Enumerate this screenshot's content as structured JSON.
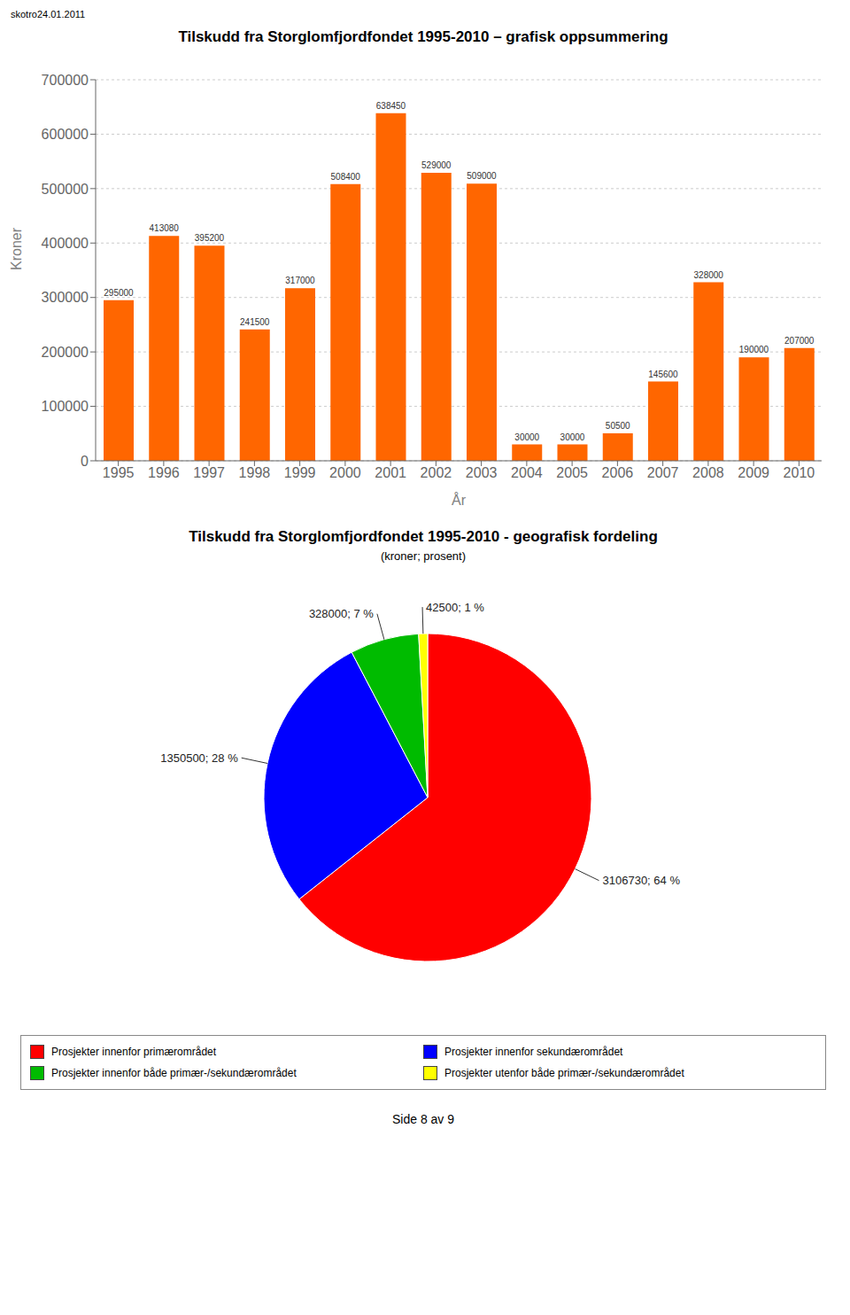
{
  "header": "skotro24.01.2011",
  "footer": "Side 8 av 9",
  "chart_data": [
    {
      "type": "bar",
      "title": "Tilskudd fra Storglomfjordfondet 1995-2010 – grafisk oppsummering",
      "xlabel": "År",
      "ylabel": "Kroner",
      "categories": [
        "1995",
        "1996",
        "1997",
        "1998",
        "1999",
        "2000",
        "2001",
        "2002",
        "2003",
        "2004",
        "2005",
        "2006",
        "2007",
        "2008",
        "2009",
        "2010"
      ],
      "values": [
        295000,
        413080,
        395200,
        241500,
        317000,
        508400,
        638450,
        529000,
        509000,
        30000,
        30000,
        50500,
        145600,
        328000,
        190000,
        207000
      ],
      "color": "#FF6600",
      "ylim": [
        0,
        700000
      ],
      "yticks": [
        0,
        100000,
        200000,
        300000,
        400000,
        500000,
        600000,
        700000
      ],
      "grid": true,
      "data_labels": true
    },
    {
      "type": "pie",
      "title": "Tilskudd fra Storglomfjordfondet 1995-2010 - geografisk fordeling",
      "subtitle": "(kroner; prosent)",
      "categories": [
        "Prosjekter innenfor primærområdet",
        "Prosjekter innenfor sekundærområdet",
        "Prosjekter innenfor både primær-/sekundærområdet",
        "Prosjekter utenfor både primær-/sekundærområdet"
      ],
      "values": [
        3106730,
        1350500,
        328000,
        42500
      ],
      "value_labels": [
        "3106730; 64 %",
        "1350500; 28 %",
        "328000; 7 %",
        "42500; 1 %"
      ],
      "colors": [
        "#FF0000",
        "#0000FF",
        "#00BB00",
        "#FFFF00"
      ],
      "legend": "bottom"
    }
  ]
}
